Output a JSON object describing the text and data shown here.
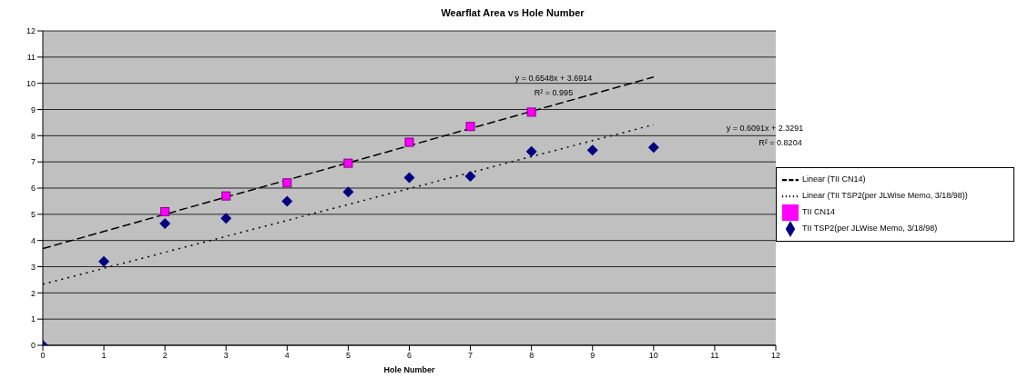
{
  "chart_data": {
    "type": "scatter",
    "title": "Wearflat Area vs Hole Number",
    "xlabel": "Hole Number",
    "xlim": [
      0,
      12
    ],
    "xticks": [
      0,
      1,
      2,
      3,
      4,
      5,
      6,
      7,
      8,
      9,
      10,
      11,
      12
    ],
    "ylim": [
      0,
      12
    ],
    "yticks": [
      0,
      1,
      2,
      3,
      4,
      5,
      6,
      7,
      8,
      9,
      10,
      11,
      12
    ],
    "grid": "y",
    "legend": "right",
    "series": [
      {
        "name": "TII CN14",
        "marker": "square",
        "color": "#ff00ff",
        "x": [
          2,
          3,
          4,
          5,
          6,
          7,
          8
        ],
        "values": [
          5.1,
          5.7,
          6.2,
          6.95,
          7.75,
          8.35,
          8.9
        ]
      },
      {
        "name": "TII TSP2(per JLWise Memo, 3/18/98)",
        "marker": "diamond",
        "color": "#000080",
        "x": [
          0,
          1,
          2,
          3,
          4,
          5,
          6,
          7,
          8,
          9,
          10
        ],
        "values": [
          0,
          3.2,
          4.65,
          4.85,
          5.5,
          5.85,
          6.4,
          6.45,
          7.4,
          7.45,
          7.55
        ]
      },
      {
        "name": "Linear (TII CN14)",
        "type": "line",
        "line_style": "dashed",
        "marker": "none",
        "color": "#000000",
        "x": [
          0,
          10
        ],
        "values": [
          3.69,
          10.24
        ]
      },
      {
        "name": "Linear (TII TSP2(per JLWise Memo, 3/18/98))",
        "type": "line",
        "line_style": "dotted",
        "marker": "none",
        "color": "#000000",
        "x": [
          0,
          10
        ],
        "values": [
          2.33,
          8.42
        ]
      }
    ],
    "annotations": [
      "y = 0.6548x + 3.6914",
      "R² = 0.995",
      "y = 0.6091x + 2.3291",
      "R² = 0.8204"
    ]
  }
}
